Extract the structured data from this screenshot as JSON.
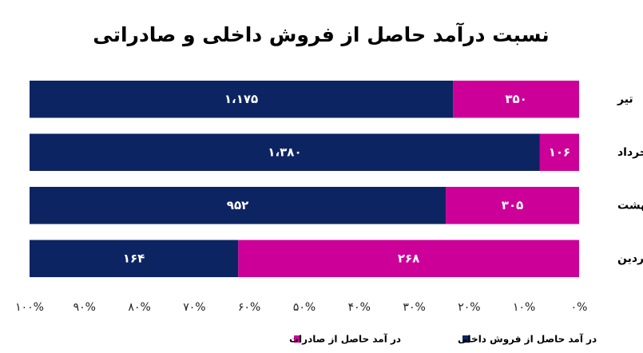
{
  "chart_data": {
    "type": "bar",
    "stacked_percent": true,
    "orientation": "horizontal",
    "x_reversed": true,
    "title": "نسبت درآمد حاصل از فروش داخلی و صادراتی",
    "categories": [
      "تیر",
      "خرداد",
      "اردیبهشت",
      "فروردین"
    ],
    "series": [
      {
        "name": "در آمد حاصل از صادرات",
        "color": "#cc0099",
        "values": [
          350,
          106,
          305,
          268
        ],
        "value_labels": [
          "۳۵۰",
          "۱۰۶",
          "۳۰۵",
          "۲۶۸"
        ]
      },
      {
        "name": "در آمد حاصل از فروش داخلی",
        "color": "#0d2463",
        "values": [
          1175,
          1380,
          952,
          164
        ],
        "value_labels": [
          "۱،۱۷۵",
          "۱،۳۸۰",
          "۹۵۲",
          "۱۶۴"
        ]
      }
    ],
    "xlim": [
      0,
      100
    ],
    "xticks": [
      {
        "value": 0,
        "label": "۰%"
      },
      {
        "value": 10,
        "label": "۱۰%"
      },
      {
        "value": 20,
        "label": "۲۰%"
      },
      {
        "value": 30,
        "label": "۳۰%"
      },
      {
        "value": 40,
        "label": "۴۰%"
      },
      {
        "value": 50,
        "label": "۵۰%"
      },
      {
        "value": 60,
        "label": "۶۰%"
      },
      {
        "value": 70,
        "label": "۷۰%"
      },
      {
        "value": 80,
        "label": "۸۰%"
      },
      {
        "value": 90,
        "label": "۹۰%"
      },
      {
        "value": 100,
        "label": "۱۰۰%"
      }
    ],
    "legend": "bottom"
  }
}
